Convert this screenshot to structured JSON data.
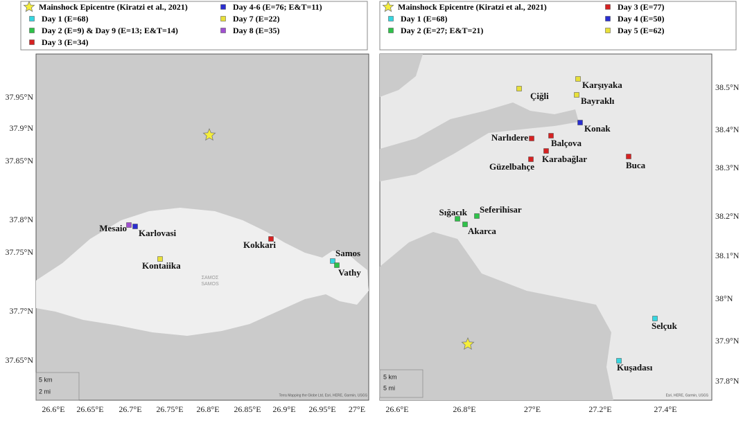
{
  "left_map": {
    "legend": [
      {
        "label": "Mainshock Epicentre (Kiratzi et al., 2021)",
        "color": "#f5ee3a",
        "shape": "star"
      },
      {
        "label": "Day 1 (E=68)",
        "color": "#36d6e0"
      },
      {
        "label": "Day 2 (E=9) & Day 9 (E=13; E&T=14)",
        "color": "#2fc24a"
      },
      {
        "label": "Day 3 (E=34)",
        "color": "#d62222"
      },
      {
        "label": "Day 4-6 (E=76; E&T=11)",
        "color": "#2a2ed0"
      },
      {
        "label": "Day 7 (E=22)",
        "color": "#e8e03a"
      },
      {
        "label": "Day 8 (E=35)",
        "color": "#a050d0"
      }
    ],
    "lat_labels": [
      "37.95°N",
      "37.9°N",
      "37.85°N",
      "37.8°N",
      "37.75°N",
      "37.7°N",
      "37.65°N"
    ],
    "lon_labels": [
      "26.6°E",
      "26.65°E",
      "26.7°E",
      "26.75°E",
      "26.8°E",
      "26.85°E",
      "26.9°E",
      "26.95°E",
      "27°E"
    ],
    "places": [
      {
        "label": "Mesaio",
        "color": "#a050d0"
      },
      {
        "label": "Karlovasi",
        "color": "#2a2ed0"
      },
      {
        "label": "Kokkari",
        "color": "#d62222"
      },
      {
        "label": "Kontaiika",
        "color": "#e8e03a"
      },
      {
        "label": "Samos",
        "color": "#36d6e0"
      },
      {
        "label": "Vathy",
        "color": "#2fc24a"
      }
    ],
    "island_labels": [
      "ΣΑΜΟΣ",
      "SAMOS"
    ],
    "scale": [
      "5 km",
      "2 mi"
    ],
    "attribution": "Terra Mapping the Globe Ltd, Esri, HERE, Garmin, USGS"
  },
  "right_map": {
    "legend": [
      {
        "label": "Mainshock Epicentre (Kiratzi et al., 2021)",
        "color": "#f5ee3a",
        "shape": "star"
      },
      {
        "label": "Day 1 (E=68)",
        "color": "#36d6e0"
      },
      {
        "label": "Day 2 (E=27; E&T=21)",
        "color": "#2fc24a"
      },
      {
        "label": "Day 3 (E=77)",
        "color": "#d62222"
      },
      {
        "label": "Day 4 (E=50)",
        "color": "#2a2ed0"
      },
      {
        "label": "Day 5 (E=62)",
        "color": "#e8e03a"
      }
    ],
    "lat_labels": [
      "38.5°N",
      "38.4°N",
      "38.3°N",
      "38.2°N",
      "38.1°N",
      "38°N",
      "37.9°N",
      "37.8°N"
    ],
    "lon_labels": [
      "26.6°E",
      "26.8°E",
      "27°E",
      "27.2°E",
      "27.4°E"
    ],
    "places": [
      {
        "label": "Çiğli",
        "color": "#e8e03a"
      },
      {
        "label": "Karşıyaka",
        "color": "#e8e03a"
      },
      {
        "label": "Bayraklı",
        "color": "#e8e03a"
      },
      {
        "label": "Konak",
        "color": "#2a2ed0"
      },
      {
        "label": "Narlıdere",
        "color": "#d62222"
      },
      {
        "label": "Balçova",
        "color": "#d62222"
      },
      {
        "label": "Karabağlar",
        "color": "#d62222"
      },
      {
        "label": "Güzelbahçe",
        "color": "#d62222"
      },
      {
        "label": "Buca",
        "color": "#d62222"
      },
      {
        "label": "Sığacık",
        "color": "#2fc24a"
      },
      {
        "label": "Seferihisar",
        "color": "#2fc24a"
      },
      {
        "label": "Akarca",
        "color": "#2fc24a"
      },
      {
        "label": "Selçuk",
        "color": "#36d6e0"
      },
      {
        "label": "Kuşadası",
        "color": "#36d6e0"
      }
    ],
    "scale": [
      "5 km",
      "5 mi"
    ],
    "attribution": "Esri, HERE, Garmin, USGS"
  }
}
